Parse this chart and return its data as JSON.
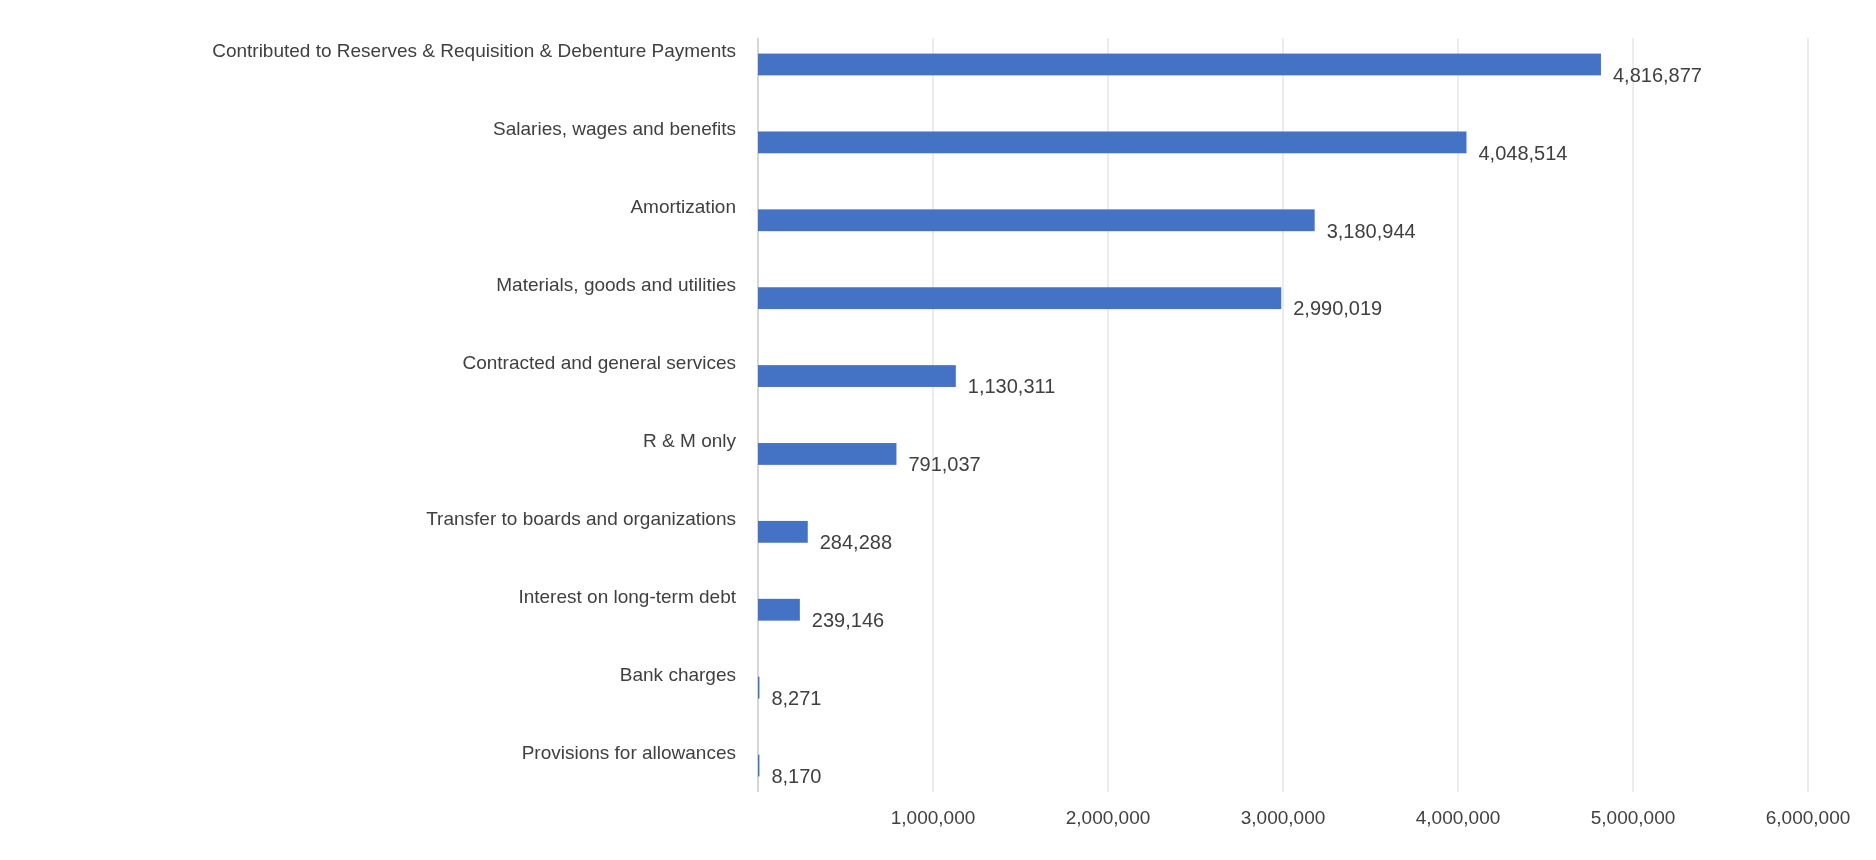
{
  "chart_data": {
    "type": "bar",
    "orientation": "horizontal",
    "categories": [
      "Contributed to Reserves & Requisition & Debenture Payments",
      "Salaries, wages and benefits",
      "Amortization",
      "Materials, goods and utilities",
      "Contracted and general services",
      "R & M only",
      "Transfer to boards and organizations",
      "Interest on long-term debt",
      "Bank charges",
      "Provisions for allowances"
    ],
    "values": [
      4816877,
      4048514,
      3180944,
      2990019,
      1130311,
      791037,
      284288,
      239146,
      8271,
      8170
    ],
    "color": "#4472c4",
    "xlim": [
      0,
      6000000
    ],
    "xticks": [
      {
        "value": 0,
        "label": null
      },
      {
        "value": 1000000,
        "label": "1,000,000"
      },
      {
        "value": 2000000,
        "label": "2,000,000"
      },
      {
        "value": 3000000,
        "label": "3,000,000"
      },
      {
        "value": 4000000,
        "label": "4,000,000"
      },
      {
        "value": 5000000,
        "label": "5,000,000"
      },
      {
        "value": 6000000,
        "label": "6,000,000"
      }
    ],
    "value_labels": [
      "4,816,877",
      "4,048,514",
      "3,180,944",
      "2,990,019",
      "1,130,311",
      "791,037",
      "284,288",
      "239,146",
      "8,271",
      "8,170"
    ],
    "grid": "x"
  }
}
